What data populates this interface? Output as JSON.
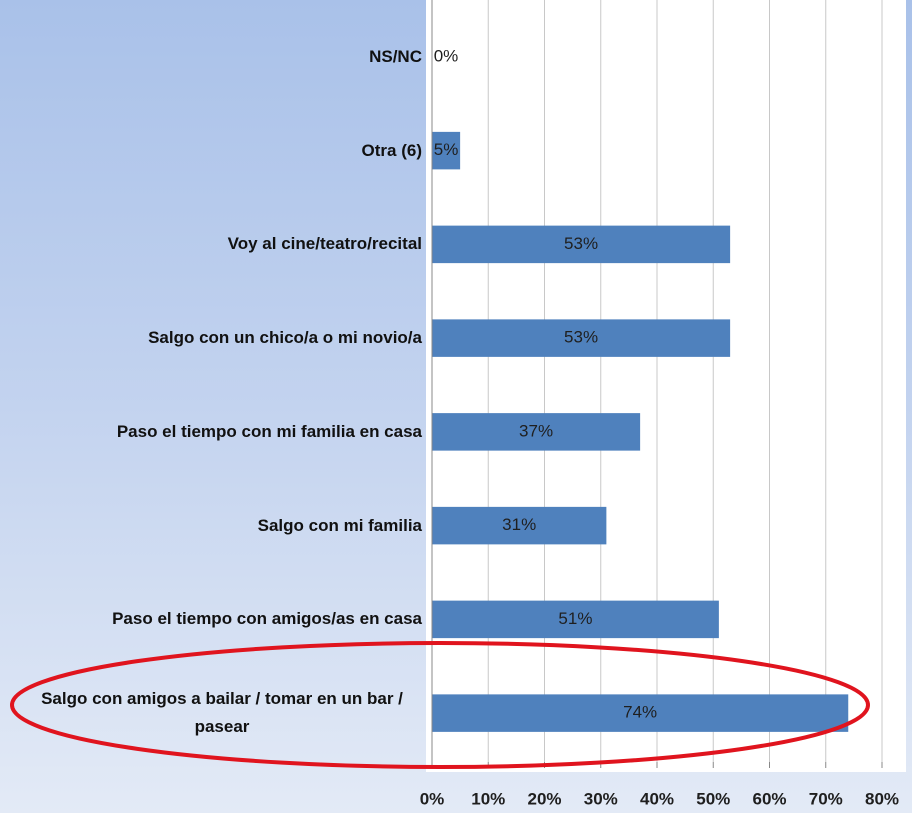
{
  "chart_data": {
    "type": "hbar",
    "categories": [
      "NS/NC",
      "Otra (6)",
      "Voy al cine/teatro/recital",
      "Salgo con un chico/a o mi novio/a",
      "Paso el tiempo con mi familia en casa",
      "Salgo con mi familia",
      "Paso el tiempo con amigos/as en casa",
      "Salgo con amigos a bailar / tomar en un bar / pasear"
    ],
    "values": [
      0,
      5,
      53,
      53,
      37,
      31,
      51,
      74
    ],
    "value_labels": [
      "0%",
      "5%",
      "53%",
      "53%",
      "37%",
      "31%",
      "51%",
      "74%"
    ],
    "color": "#4f81bd",
    "xlim": [
      0,
      80
    ],
    "xticks": [
      {
        "value": 0,
        "label": "0%"
      },
      {
        "value": 10,
        "label": "10%"
      },
      {
        "value": 20,
        "label": "20%"
      },
      {
        "value": 30,
        "label": "30%"
      },
      {
        "value": 40,
        "label": "40%"
      },
      {
        "value": 50,
        "label": "50%"
      },
      {
        "value": 60,
        "label": "60%"
      },
      {
        "value": 70,
        "label": "70%"
      },
      {
        "value": 80,
        "label": "80%"
      }
    ],
    "grid": true
  }
}
